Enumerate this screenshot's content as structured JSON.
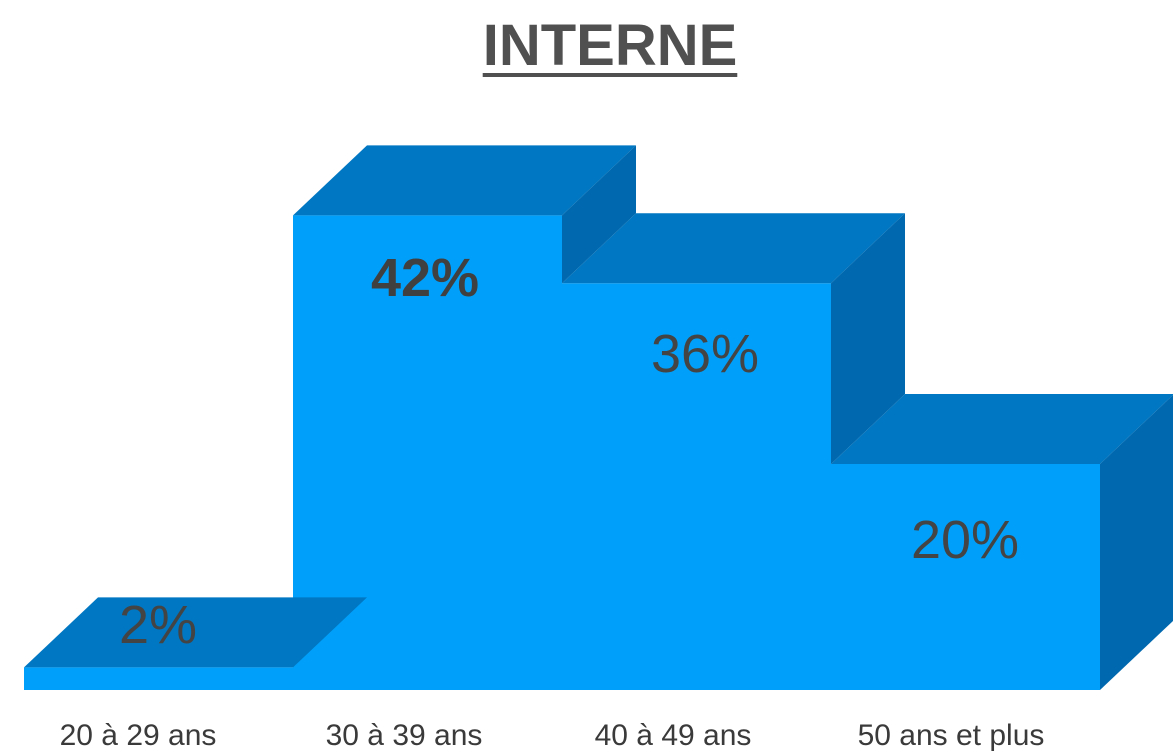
{
  "chart_data": {
    "type": "bar",
    "title": "INTERNE",
    "categories": [
      "20 à 29 ans",
      "30 à 39 ans",
      "40 à 49 ans",
      "50 ans et plus"
    ],
    "values": [
      2,
      42,
      36,
      20
    ],
    "value_labels": [
      "2%",
      "42%",
      "36%",
      "20%"
    ],
    "bold_value_index": 1,
    "xlabel": "",
    "ylabel": "",
    "ylim": [
      0,
      45
    ],
    "grid": false,
    "legend": "none",
    "style": "3d-stepped",
    "colors": {
      "front": "#00a0fa",
      "top": "#0077c2",
      "side": "#0068ae",
      "text": "#444444"
    }
  }
}
